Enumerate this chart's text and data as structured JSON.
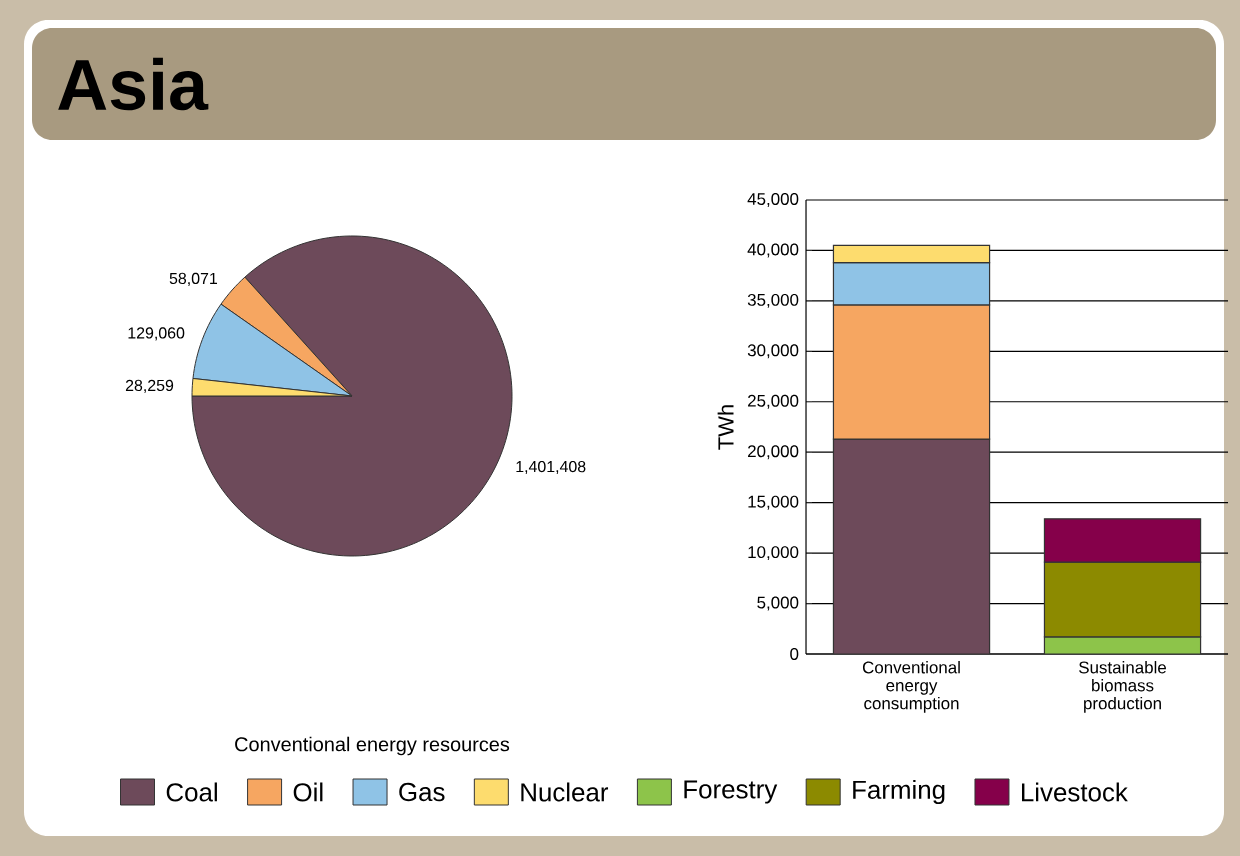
{
  "chart_data": [
    {
      "type": "pie",
      "title": "Asia",
      "categories": [
        null,
        null,
        null,
        null
      ],
      "values": [
        1401408,
        58071,
        129060,
        28259
      ],
      "colors": [
        "#6d4a5a",
        "#f6a661",
        "#8fc3e6",
        "#fddc6e"
      ],
      "value_labels": [
        "1,401,408",
        "58,071",
        "129,060",
        "28,259"
      ],
      "annotations": [
        "Conventional energy resources"
      ]
    },
    {
      "type": "bar",
      "stacked": true,
      "categories": [
        "Conventional energy consumption",
        "Sustainable biomass production"
      ],
      "ylabel": "TWh",
      "ylim": [
        0,
        45000
      ],
      "yticks": [
        {
          "value": 0,
          "label": "0"
        },
        {
          "value": 5000,
          "label": "5,000"
        },
        {
          "value": 10000,
          "label": "10,000"
        },
        {
          "value": 15000,
          "label": "15,000"
        },
        {
          "value": 20000,
          "label": "20,000"
        },
        {
          "value": 25000,
          "label": "25,000"
        },
        {
          "value": 30000,
          "label": "30,000"
        },
        {
          "value": 35000,
          "label": "35,000"
        },
        {
          "value": 40000,
          "label": "40,000"
        },
        {
          "value": 45000,
          "label": "45,000"
        }
      ],
      "grid": "y",
      "legend": "bottom",
      "series": [
        {
          "name": "Coal",
          "color": "#6d4a5a",
          "values": [
            21300,
            null
          ]
        },
        {
          "name": "Oil",
          "color": "#f6a661",
          "values": [
            13300,
            null
          ]
        },
        {
          "name": "Gas",
          "color": "#8fc3e6",
          "values": [
            4200,
            null
          ]
        },
        {
          "name": "Nuclear",
          "color": "#fddc6e",
          "values": [
            1700,
            null
          ]
        },
        {
          "name": "Forestry",
          "color": "#8dc44a",
          "values": [
            null,
            1700
          ]
        },
        {
          "name": "Farming",
          "color": "#8c8a00",
          "values": [
            null,
            7400
          ]
        },
        {
          "name": "Livestock",
          "color": "#85004a",
          "values": [
            null,
            4300
          ]
        }
      ]
    }
  ]
}
